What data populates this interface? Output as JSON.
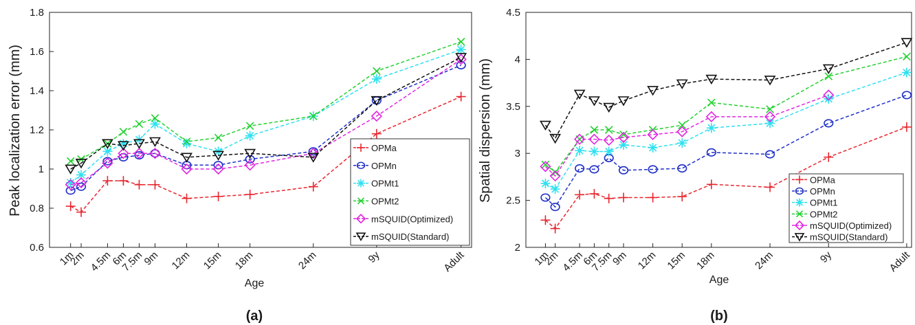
{
  "chart_data": [
    {
      "type": "line",
      "panel_label": "(a)",
      "xlabel": "Age",
      "ylabel": "Peak localization error  (mm)",
      "categories": [
        "1m",
        "2m",
        "4.5m",
        "6m",
        "7.5m",
        "9m",
        "12m",
        "15m",
        "18m",
        "24m",
        "9y",
        "Adult"
      ],
      "x": [
        1,
        2,
        4.5,
        6,
        7.5,
        9,
        12,
        15,
        18,
        24,
        30,
        38
      ],
      "ylim": [
        0.6,
        1.8
      ],
      "yticks": [
        "0.6",
        "0.8",
        "1",
        "1.2",
        "1.4",
        "1.6",
        "1.8"
      ],
      "legend_position": "lower-right",
      "grid": false,
      "series": [
        {
          "name": "OPMa",
          "color": "#e8262e",
          "marker": "plus",
          "values": [
            0.81,
            0.78,
            0.94,
            0.94,
            0.92,
            0.92,
            0.85,
            0.86,
            0.87,
            0.91,
            1.18,
            1.37
          ]
        },
        {
          "name": "OPMn",
          "color": "#1f2fc7",
          "marker": "circle",
          "values": [
            0.89,
            0.91,
            1.04,
            1.06,
            1.07,
            1.08,
            1.02,
            1.02,
            1.05,
            1.09,
            1.35,
            1.53
          ]
        },
        {
          "name": "OPMt1",
          "color": "#2ee0f0",
          "marker": "asterisk",
          "values": [
            0.93,
            0.97,
            1.09,
            1.13,
            1.15,
            1.23,
            1.13,
            1.09,
            1.17,
            1.27,
            1.46,
            1.61
          ]
        },
        {
          "name": "OPMt2",
          "color": "#22d12f",
          "marker": "x",
          "values": [
            1.04,
            1.05,
            1.13,
            1.19,
            1.23,
            1.26,
            1.14,
            1.16,
            1.22,
            1.27,
            1.5,
            1.65
          ]
        },
        {
          "name": "mSQUID(Optimized)",
          "color": "#e026e0",
          "marker": "diamond",
          "values": [
            0.92,
            0.93,
            1.03,
            1.08,
            1.08,
            1.08,
            1.0,
            1.0,
            1.02,
            1.08,
            1.27,
            1.56
          ]
        },
        {
          "name": "mSQUID(Standard)",
          "color": "#111111",
          "marker": "triangle-down",
          "values": [
            1.0,
            1.03,
            1.13,
            1.12,
            1.13,
            1.14,
            1.06,
            1.07,
            1.08,
            1.06,
            1.35,
            1.57
          ]
        }
      ]
    },
    {
      "type": "line",
      "panel_label": "(b)",
      "xlabel": "Age",
      "ylabel": "Spatial dispersion  (mm)",
      "categories": [
        "1m",
        "2m",
        "4.5m",
        "6m",
        "7.5m",
        "9m",
        "12m",
        "15m",
        "18m",
        "24m",
        "9y",
        "Adult"
      ],
      "x": [
        1,
        2,
        4.5,
        6,
        7.5,
        9,
        12,
        15,
        18,
        24,
        30,
        38
      ],
      "ylim": [
        2,
        4.5
      ],
      "yticks": [
        "2",
        "2.5",
        "3",
        "3.5",
        "4",
        "4.5"
      ],
      "legend_position": "lower-right",
      "grid": false,
      "series": [
        {
          "name": "OPMa",
          "color": "#e8262e",
          "marker": "plus",
          "values": [
            2.29,
            2.2,
            2.56,
            2.57,
            2.52,
            2.53,
            2.53,
            2.54,
            2.67,
            2.64,
            2.96,
            3.28
          ]
        },
        {
          "name": "OPMn",
          "color": "#1f2fc7",
          "marker": "circle",
          "values": [
            2.53,
            2.43,
            2.84,
            2.83,
            2.95,
            2.82,
            2.83,
            2.84,
            3.01,
            2.99,
            3.32,
            3.62
          ]
        },
        {
          "name": "OPMt1",
          "color": "#2ee0f0",
          "marker": "asterisk",
          "values": [
            2.68,
            2.62,
            3.03,
            3.02,
            3.02,
            3.09,
            3.06,
            3.11,
            3.27,
            3.32,
            3.58,
            3.86
          ]
        },
        {
          "name": "OPMt2",
          "color": "#22d12f",
          "marker": "x",
          "values": [
            2.88,
            2.8,
            3.15,
            3.25,
            3.25,
            3.2,
            3.25,
            3.3,
            3.54,
            3.47,
            3.82,
            4.03
          ]
        },
        {
          "name": "mSQUID(Optimized)",
          "color": "#e026e0",
          "marker": "diamond",
          "values": [
            2.86,
            2.76,
            3.15,
            3.15,
            3.14,
            3.17,
            3.2,
            3.23,
            3.39,
            3.39,
            3.62,
            null
          ]
        },
        {
          "name": "mSQUID(Standard)",
          "color": "#111111",
          "marker": "triangle-down",
          "values": [
            3.3,
            3.16,
            3.63,
            3.56,
            3.49,
            3.56,
            3.67,
            3.74,
            3.79,
            3.78,
            3.9,
            4.18
          ]
        }
      ]
    }
  ]
}
